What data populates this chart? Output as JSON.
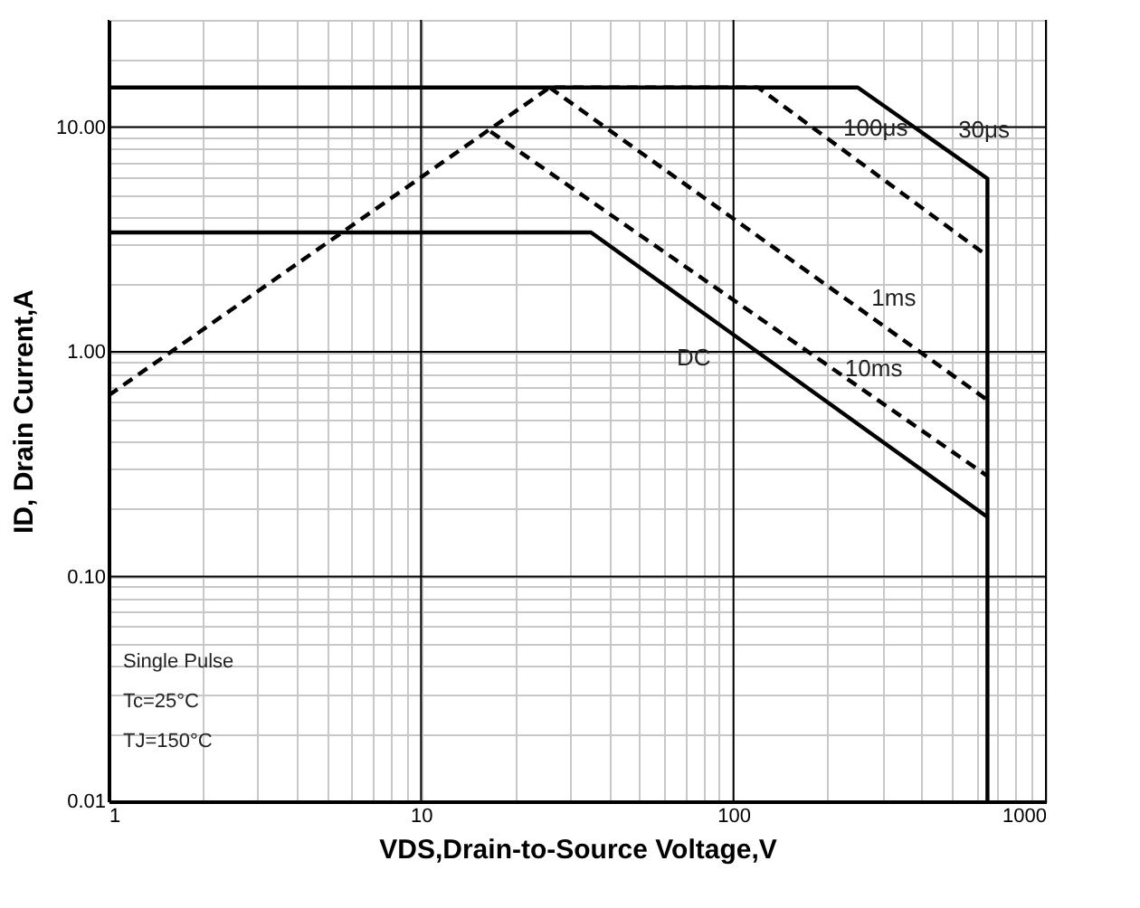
{
  "chart_data": {
    "type": "line",
    "xlabel": "VDS,Drain-to-Source Voltage,V",
    "ylabel": "ID, Drain Current,A",
    "log": "xy",
    "grid": true,
    "marker": "none",
    "xlim": [
      1,
      1000
    ],
    "ylim": [
      0.01,
      30
    ],
    "xticks": [
      1,
      {
        "value": 2,
        "label": null
      },
      {
        "value": 3,
        "label": null
      },
      {
        "value": 4,
        "label": null
      },
      {
        "value": 5,
        "label": null
      },
      {
        "value": 6,
        "label": null
      },
      {
        "value": 7,
        "label": null
      },
      {
        "value": 8,
        "label": null
      },
      {
        "value": 9,
        "label": null
      },
      10,
      {
        "value": 20,
        "label": null
      },
      {
        "value": 30,
        "label": null
      },
      {
        "value": 40,
        "label": null
      },
      {
        "value": 50,
        "label": null
      },
      {
        "value": 60,
        "label": null
      },
      {
        "value": 70,
        "label": null
      },
      {
        "value": 80,
        "label": null
      },
      {
        "value": 90,
        "label": null
      },
      100,
      {
        "value": 200,
        "label": null
      },
      {
        "value": 300,
        "label": null
      },
      {
        "value": 400,
        "label": null
      },
      {
        "value": 500,
        "label": null
      },
      {
        "value": 600,
        "label": null
      },
      {
        "value": 700,
        "label": null
      },
      {
        "value": 800,
        "label": null
      },
      {
        "value": 900,
        "label": null
      },
      1000
    ],
    "yticks": [
      0.01,
      {
        "value": 0.02,
        "label": null
      },
      {
        "value": 0.03,
        "label": null
      },
      {
        "value": 0.04,
        "label": null
      },
      {
        "value": 0.05,
        "label": null
      },
      {
        "value": 0.06,
        "label": null
      },
      {
        "value": 0.07,
        "label": null
      },
      {
        "value": 0.08,
        "label": null
      },
      {
        "value": 0.09,
        "label": null
      },
      {
        "value": 0.1,
        "label": "0.10"
      },
      {
        "value": 0.2,
        "label": null
      },
      {
        "value": 0.3,
        "label": null
      },
      {
        "value": 0.4,
        "label": null
      },
      {
        "value": 0.5,
        "label": null
      },
      {
        "value": 0.6,
        "label": null
      },
      {
        "value": 0.7,
        "label": null
      },
      {
        "value": 0.8,
        "label": null
      },
      {
        "value": 0.9,
        "label": null
      },
      {
        "value": 1,
        "label": "1.00"
      },
      {
        "value": 2,
        "label": null
      },
      {
        "value": 3,
        "label": null
      },
      {
        "value": 4,
        "label": null
      },
      {
        "value": 5,
        "label": null
      },
      {
        "value": 6,
        "label": null
      },
      {
        "value": 7,
        "label": null
      },
      {
        "value": 8,
        "label": null
      },
      {
        "value": 9,
        "label": null
      },
      {
        "value": 10,
        "label": "10.00"
      },
      {
        "value": 20,
        "label": null
      },
      {
        "value": 30,
        "label": null
      }
    ],
    "series": [
      {
        "name": "30μs",
        "color": "#000000",
        "line_style": "solid",
        "x": [
          1,
          250,
          650,
          650
        ],
        "values": [
          15,
          15,
          5.9,
          0.01
        ]
      },
      {
        "name": "100μs",
        "color": "#000000",
        "line_style": "dashed",
        "x": [
          1,
          25.8,
          120,
          650
        ],
        "values": [
          0.64,
          15,
          15,
          2.67
        ]
      },
      {
        "name": "1ms",
        "color": "#000000",
        "line_style": "dashed",
        "x": [
          25.8,
          650
        ],
        "values": [
          15,
          0.61
        ]
      },
      {
        "name": "10ms",
        "color": "#000000",
        "line_style": "dashed",
        "x": [
          16.7,
          650
        ],
        "values": [
          9.55,
          0.28
        ]
      },
      {
        "name": "DC",
        "color": "#000000",
        "line_style": "solid",
        "x": [
          1,
          35,
          650
        ],
        "values": [
          3.4,
          3.4,
          0.184
        ]
      }
    ],
    "annotations": [
      "Single Pulse",
      "Tc=25°C",
      "TJ=150°C"
    ]
  }
}
